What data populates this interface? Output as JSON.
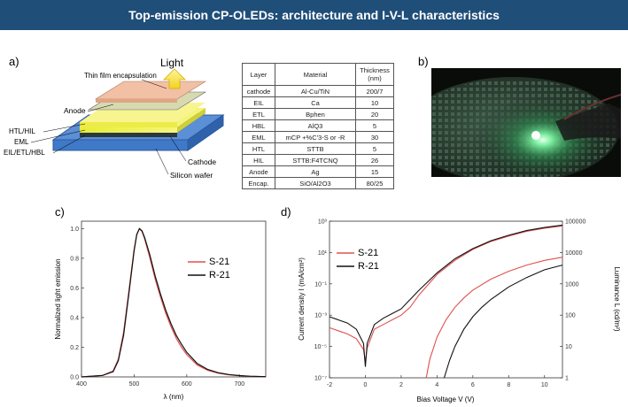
{
  "banner": {
    "title": "Top-emission CP-OLEDs:  architecture and I-V-L characteristics"
  },
  "panels": {
    "a": "a)",
    "b": "b)",
    "c": "c)",
    "d": "d)"
  },
  "diagram": {
    "light": "Light",
    "labels": {
      "encapsulation": "Thin film encapsulation",
      "anode": "Anode",
      "htl": "HTL/HIL",
      "eml": "EML",
      "eil": "EIL/ETL/HBL",
      "cathode": "Cathode",
      "wafer": "Silicon wafer"
    }
  },
  "table": {
    "headers": [
      "Layer",
      "Material",
      "Thickness"
    ],
    "thickness_unit": "(nm)",
    "rows": [
      [
        "cathode",
        "Al-Cu/TiN",
        "200/7"
      ],
      [
        "EIL",
        "Ca",
        "10"
      ],
      [
        "ETL",
        "Bphen",
        "20"
      ],
      [
        "HBL",
        "AlQ3",
        "5"
      ],
      [
        "EML",
        "mCP +%C'3-S or -R",
        "30"
      ],
      [
        "HTL",
        "STTB",
        "5"
      ],
      [
        "HIL",
        "STTB:F4TCNQ",
        "26"
      ],
      [
        "Anode",
        "Ag",
        "15"
      ],
      [
        "Encap.",
        "SiO/Al2O3",
        "80/25"
      ]
    ]
  },
  "colors": {
    "banner": "#1f4e79",
    "series_s": "#e0504e",
    "series_r": "#111111"
  },
  "chart_data": [
    {
      "type": "line",
      "panel": "c)",
      "xlabel": "λ (nm)",
      "ylabel": "Normalized light emission",
      "xlim": [
        400,
        750
      ],
      "ylim": [
        0,
        1.05
      ],
      "xticks": [
        "400",
        "500",
        "600",
        "700"
      ],
      "yticks": [
        "0.0",
        "0.2",
        "0.4",
        "0.6",
        "0.8",
        "1.0"
      ],
      "legend_position": "upper-right",
      "series": [
        {
          "name": "S-21",
          "color": "#e0504e",
          "x": [
            400,
            440,
            460,
            470,
            480,
            490,
            500,
            505,
            510,
            515,
            520,
            530,
            540,
            550,
            560,
            570,
            580,
            590,
            600,
            620,
            640,
            660,
            680,
            700,
            720,
            750
          ],
          "y": [
            0,
            0.01,
            0.04,
            0.12,
            0.3,
            0.58,
            0.86,
            0.96,
            1.0,
            0.98,
            0.93,
            0.8,
            0.66,
            0.54,
            0.43,
            0.34,
            0.26,
            0.2,
            0.15,
            0.08,
            0.045,
            0.025,
            0.014,
            0.008,
            0.004,
            0.002
          ]
        },
        {
          "name": "R-21",
          "color": "#111111",
          "x": [
            400,
            440,
            460,
            470,
            480,
            490,
            500,
            505,
            510,
            515,
            520,
            530,
            540,
            550,
            560,
            570,
            580,
            590,
            600,
            620,
            640,
            660,
            680,
            700,
            720,
            750
          ],
          "y": [
            0,
            0.01,
            0.035,
            0.11,
            0.28,
            0.56,
            0.85,
            0.96,
            1.0,
            0.985,
            0.94,
            0.82,
            0.68,
            0.56,
            0.45,
            0.36,
            0.28,
            0.22,
            0.165,
            0.09,
            0.05,
            0.028,
            0.016,
            0.009,
            0.005,
            0.002
          ]
        }
      ]
    },
    {
      "type": "line",
      "panel": "d)",
      "xlabel": "Bias Voltage V (V)",
      "ylabel_left": "Current density  I (mA/cm²)",
      "ylabel_right": "Luminance L (cd/m²)",
      "xlim": [
        -2,
        11
      ],
      "xticks": [
        "-2",
        "0",
        "2",
        "4",
        "6",
        "8",
        "10"
      ],
      "ylim_left_log10": [
        -7,
        3
      ],
      "yticks_left": [
        "10⁻⁷",
        "10⁻⁵",
        "10⁻³",
        "10⁻¹",
        "10¹",
        "10³"
      ],
      "ylim_right_log10": [
        0,
        5
      ],
      "yticks_right": [
        "1",
        "10",
        "100",
        "1000",
        "10000",
        "100000"
      ],
      "legend_position": "upper-left",
      "current_density_log10": {
        "S-21": {
          "x": [
            -2,
            -1,
            -0.5,
            -0.1,
            0,
            0.1,
            0.5,
            1,
            1.5,
            2,
            2.5,
            3,
            4,
            5,
            6,
            7,
            8,
            9,
            10,
            11
          ],
          "y": [
            -3.8,
            -4.2,
            -4.5,
            -5.2,
            -6.0,
            -5.1,
            -3.9,
            -3.6,
            -3.3,
            -3.0,
            -2.5,
            -1.7,
            -0.4,
            0.5,
            1.2,
            1.7,
            2.05,
            2.35,
            2.55,
            2.7
          ]
        },
        "R-21": {
          "x": [
            -2,
            -1,
            -0.5,
            -0.1,
            0,
            0.1,
            0.5,
            1,
            1.5,
            2,
            2.5,
            3,
            4,
            5,
            6,
            7,
            8,
            9,
            10,
            11
          ],
          "y": [
            -3.1,
            -3.5,
            -3.9,
            -4.8,
            -6.3,
            -4.8,
            -3.6,
            -3.2,
            -2.9,
            -2.6,
            -2.0,
            -1.4,
            -0.3,
            0.6,
            1.25,
            1.75,
            2.1,
            2.4,
            2.6,
            2.75
          ]
        }
      },
      "luminance_log10": {
        "S-21": {
          "x": [
            3.4,
            3.6,
            4,
            4.5,
            5,
            5.5,
            6,
            7,
            8,
            9,
            10,
            11
          ],
          "y": [
            0,
            0.6,
            1.3,
            1.85,
            2.25,
            2.55,
            2.8,
            3.15,
            3.4,
            3.6,
            3.75,
            3.85
          ]
        },
        "R-21": {
          "x": [
            4.4,
            4.7,
            5,
            5.5,
            6,
            6.5,
            7,
            8,
            9,
            10,
            11
          ],
          "y": [
            0,
            0.55,
            1.0,
            1.55,
            1.95,
            2.25,
            2.5,
            2.9,
            3.2,
            3.45,
            3.6
          ]
        }
      }
    }
  ]
}
